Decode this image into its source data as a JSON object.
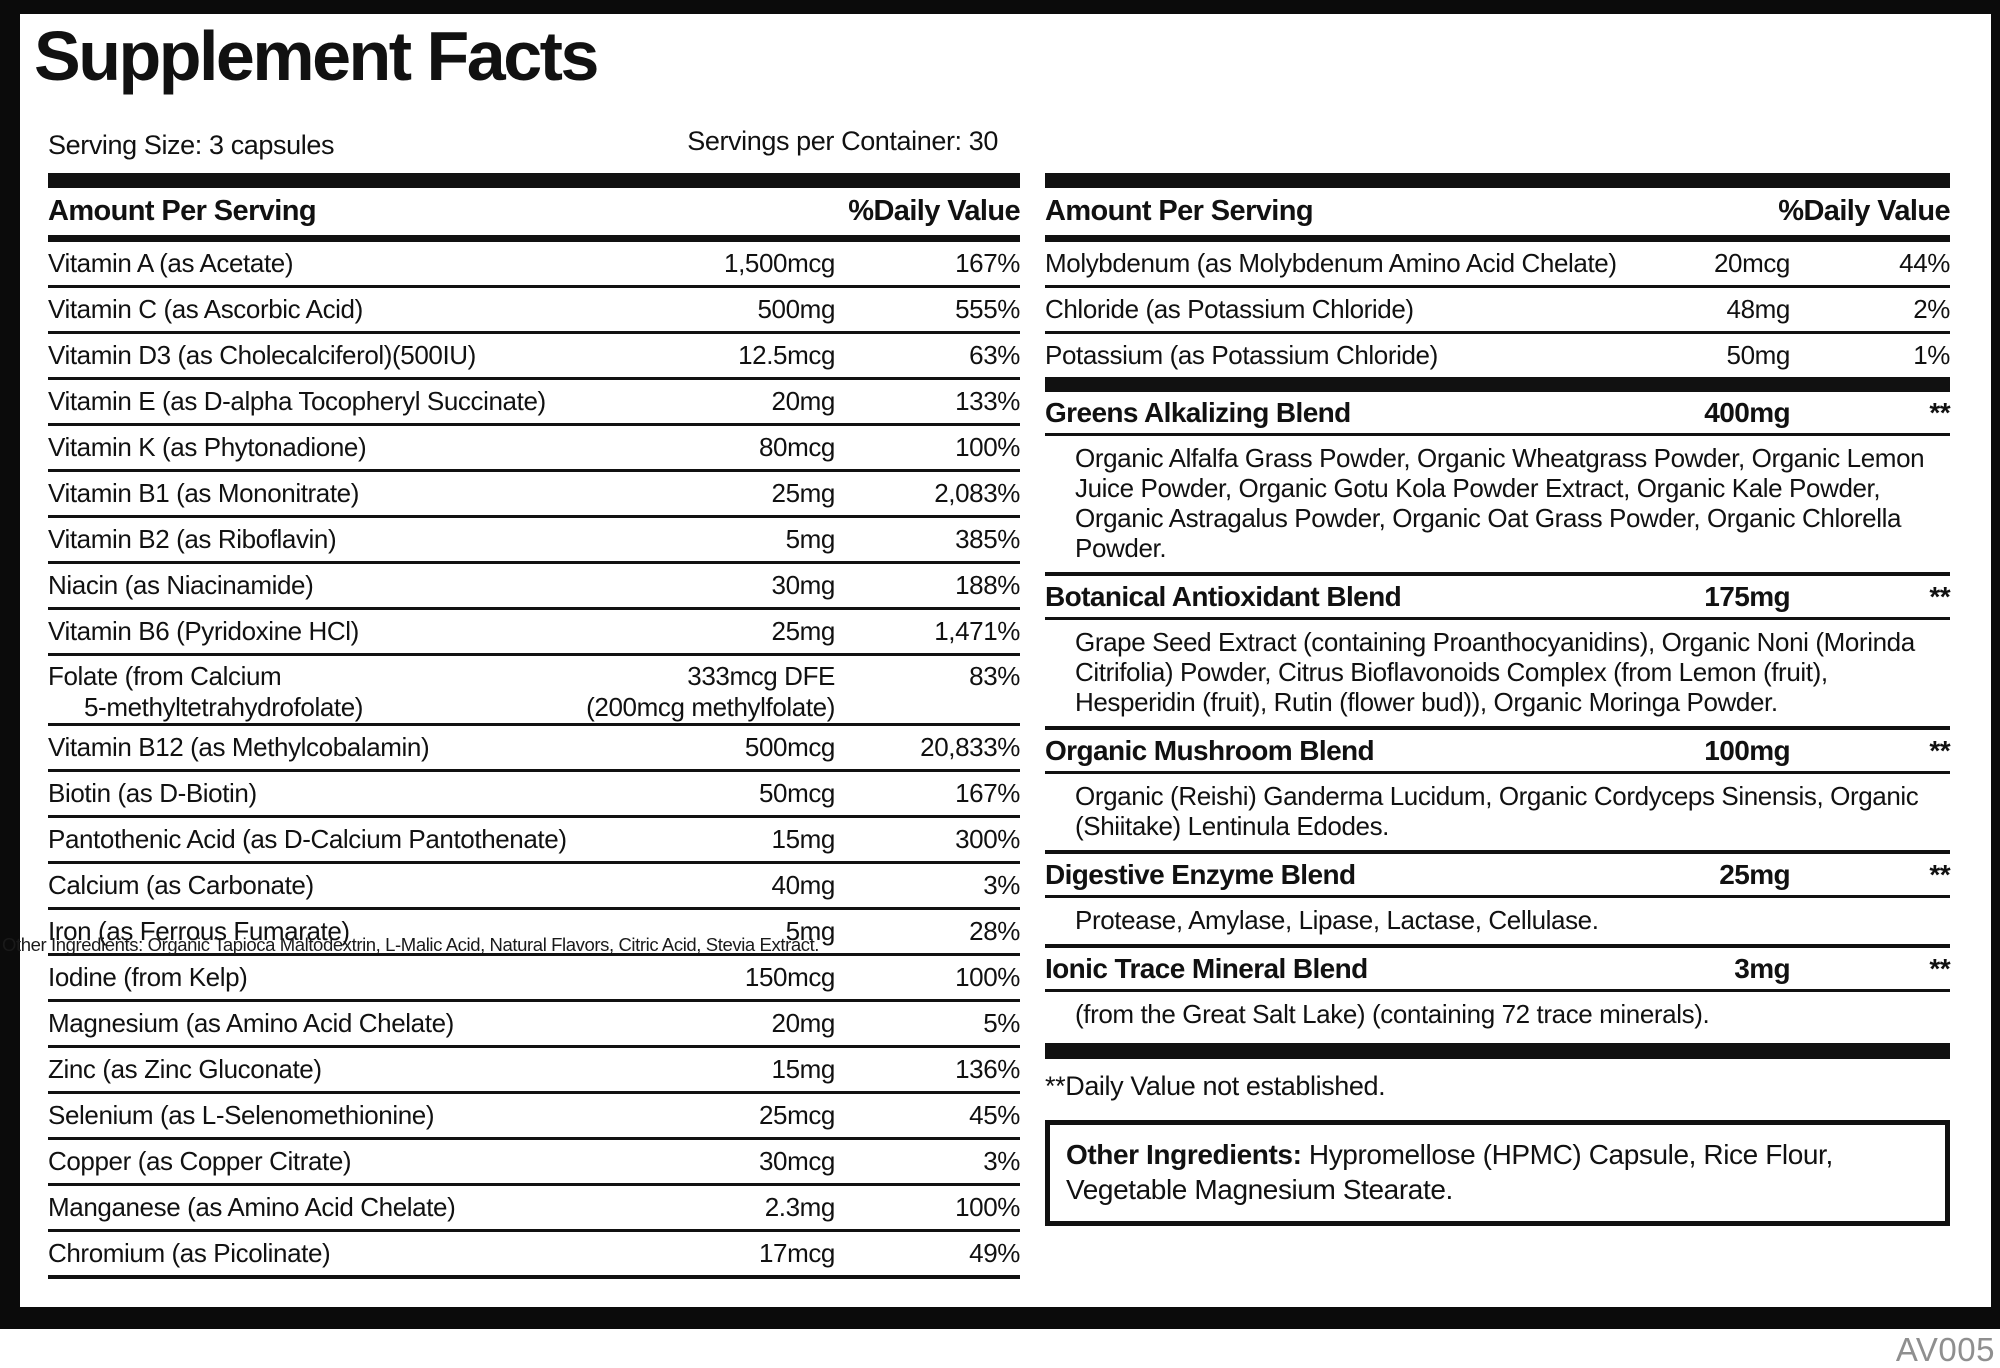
{
  "title": "Supplement Facts",
  "serving": {
    "size": "Serving Size: 3 capsules",
    "per_container": "Servings per Container: 30"
  },
  "left_table": {
    "header_amount": "Amount Per Serving",
    "header_dv": "%Daily Value",
    "rows": [
      {
        "label": "Vitamin A (as Acetate)",
        "amount": "1,500mcg",
        "dv": "167%"
      },
      {
        "label": "Vitamin C (as Ascorbic Acid)",
        "amount": "500mg",
        "dv": "555%"
      },
      {
        "label": "Vitamin D3 (as Cholecalciferol)(500IU)",
        "amount": "12.5mcg",
        "dv": "63%"
      },
      {
        "label": "Vitamin E (as D-alpha Tocopheryl Succinate)",
        "amount": "20mg",
        "dv": "133%"
      },
      {
        "label": "Vitamin K (as Phytonadione)",
        "amount": "80mcg",
        "dv": "100%"
      },
      {
        "label": "Vitamin B1 (as Mononitrate)",
        "amount": "25mg",
        "dv": "2,083%"
      },
      {
        "label": "Vitamin B2 (as Riboflavin)",
        "amount": "5mg",
        "dv": "385%"
      },
      {
        "label": "Niacin (as Niacinamide)",
        "amount": "30mg",
        "dv": "188%"
      },
      {
        "label": "Vitamin B6 (Pyridoxine HCl)",
        "amount": "25mg",
        "dv": "1,471%"
      },
      {
        "label": "Folate (from Calcium",
        "label2": "5-methyltetrahydrofolate)",
        "amount": "333mcg DFE",
        "amount2": "(200mcg methylfolate)",
        "dv": "83%"
      },
      {
        "label": "Vitamin B12 (as Methylcobalamin)",
        "amount": "500mcg",
        "dv": "20,833%"
      },
      {
        "label": "Biotin (as D-Biotin)",
        "amount": "50mcg",
        "dv": "167%"
      },
      {
        "label": "Pantothenic Acid (as D-Calcium Pantothenate)",
        "amount": "15mg",
        "dv": "300%"
      },
      {
        "label": "Calcium (as Carbonate)",
        "amount": "40mg",
        "dv": "3%"
      },
      {
        "label": "Iron (as Ferrous Fumarate)",
        "amount": "5mg",
        "dv": "28%"
      },
      {
        "label": "Iodine (from Kelp)",
        "amount": "150mcg",
        "dv": "100%"
      },
      {
        "label": "Magnesium (as Amino Acid Chelate)",
        "amount": "20mg",
        "dv": "5%"
      },
      {
        "label": "Zinc (as Zinc Gluconate)",
        "amount": "15mg",
        "dv": "136%"
      },
      {
        "label": "Selenium (as L-Selenomethionine)",
        "amount": "25mcg",
        "dv": "45%"
      },
      {
        "label": "Copper (as Copper Citrate)",
        "amount": "30mcg",
        "dv": "3%"
      },
      {
        "label": "Manganese (as Amino Acid Chelate)",
        "amount": "2.3mg",
        "dv": "100%"
      },
      {
        "label": "Chromium (as Picolinate)",
        "amount": "17mcg",
        "dv": "49%"
      }
    ]
  },
  "right_table": {
    "header_amount": "Amount Per Serving",
    "header_dv": "%Daily Value",
    "rows": [
      {
        "label": "Molybdenum (as Molybdenum Amino Acid Chelate)",
        "amount": "20mcg",
        "dv": "44%"
      },
      {
        "label": "Chloride (as Potassium Chloride)",
        "amount": "48mg",
        "dv": "2%"
      },
      {
        "label": "Potassium (as Potassium Chloride)",
        "amount": "50mg",
        "dv": "1%"
      }
    ],
    "blends": [
      {
        "name": "Greens Alkalizing Blend",
        "amount": "400mg",
        "dv": "**",
        "desc": "Organic Alfalfa Grass Powder, Organic Wheatgrass Powder, Organic Lemon Juice Powder, Organic Gotu Kola Powder Extract, Organic Kale Powder, Organic Astragalus Powder, Organic Oat Grass Powder, Organic Chlorella Powder."
      },
      {
        "name": "Botanical Antioxidant Blend",
        "amount": "175mg",
        "dv": "**",
        "desc": "Grape Seed Extract (containing Proanthocyanidins), Organic Noni (Morinda Citrifolia) Powder, Citrus Bioflavonoids Complex (from Lemon (fruit), Hesperidin (fruit), Rutin (flower bud)), Organic Moringa Powder."
      },
      {
        "name": "Organic Mushroom Blend",
        "amount": "100mg",
        "dv": "**",
        "desc": "Organic (Reishi) Ganderma Lucidum, Organic Cordyceps Sinensis, Organic (Shiitake) Lentinula Edodes."
      },
      {
        "name": "Digestive Enzyme Blend",
        "amount": "25mg",
        "dv": "**",
        "desc": "Protease, Amylase, Lipase, Lactase, Cellulase."
      },
      {
        "name": "Ionic Trace Mineral Blend",
        "amount": "3mg",
        "dv": "**",
        "desc": "(from the Great Salt Lake) (containing 72 trace minerals)."
      }
    ]
  },
  "dv_note": "**Daily Value not established.",
  "other_ingredients": {
    "label": "Other Ingredients:",
    "text": "Hypromellose (HPMC) Capsule, Rice Flour, Vegetable Magnesium Stearate."
  },
  "overlay_text": "Other Ingredients: Organic Tapioca Maltodextrin, L-Malic Acid, Natural Flavors, Citric Acid, Stevia Extract.",
  "footer_code": "AV005",
  "colors": {
    "ink": "#111111",
    "muted": "#8f8f8f"
  }
}
